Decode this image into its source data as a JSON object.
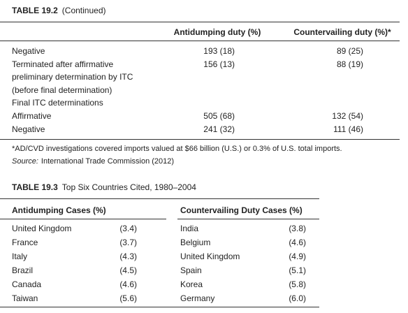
{
  "table_19_2": {
    "label": "TABLE 19.2",
    "caption": "(Continued)",
    "columns": [
      "Antidumping duty (%)",
      "Countervailing duty (%)*"
    ],
    "rows": [
      {
        "label": [
          "Negative"
        ],
        "values": [
          "193 (18)",
          "89 (25)"
        ]
      },
      {
        "label": [
          "Terminated after affirmative",
          "preliminary determination by ITC",
          "(before final determination)"
        ],
        "values": [
          "156 (13)",
          "88 (19)"
        ]
      },
      {
        "label": [
          "Final ITC determinations"
        ]
      },
      {
        "label": [
          "Affirmative"
        ],
        "values": [
          "505 (68)",
          "132 (54)"
        ]
      },
      {
        "label": [
          "Negative"
        ],
        "values": [
          "241 (32)",
          "111 (46)"
        ]
      }
    ],
    "footnote": "*AD/CVD investigations covered imports valued at $66 billion (U.S.) or 0.3% of U.S. total imports.",
    "source": {
      "label": "Source:",
      "text": "International Trade Commission (2012)"
    }
  },
  "table_19_3": {
    "label": "TABLE 19.3",
    "caption": "Top Six Countries Cited, 1980–2004",
    "columns": [
      "Antidumping Cases (%)",
      "Countervailing Duty Cases (%)"
    ],
    "rows": [
      {
        "left": [
          "United Kingdom",
          "(3.4)"
        ],
        "right": [
          "India",
          "(3.8)"
        ]
      },
      {
        "left": [
          "France",
          "(3.7)"
        ],
        "right": [
          "Belgium",
          "(4.6)"
        ]
      },
      {
        "left": [
          "Italy",
          "(4.3)"
        ],
        "right": [
          "United Kingdom",
          "(4.9)"
        ]
      },
      {
        "left": [
          "Brazil",
          "(4.5)"
        ],
        "right": [
          "Spain",
          "(5.1)"
        ]
      },
      {
        "left": [
          "Canada",
          "(4.6)"
        ],
        "right": [
          "Korea",
          "(5.8)"
        ]
      },
      {
        "left": [
          "Taiwan",
          "(5.6)"
        ],
        "right": [
          "Germany",
          "(6.0)"
        ]
      }
    ]
  }
}
